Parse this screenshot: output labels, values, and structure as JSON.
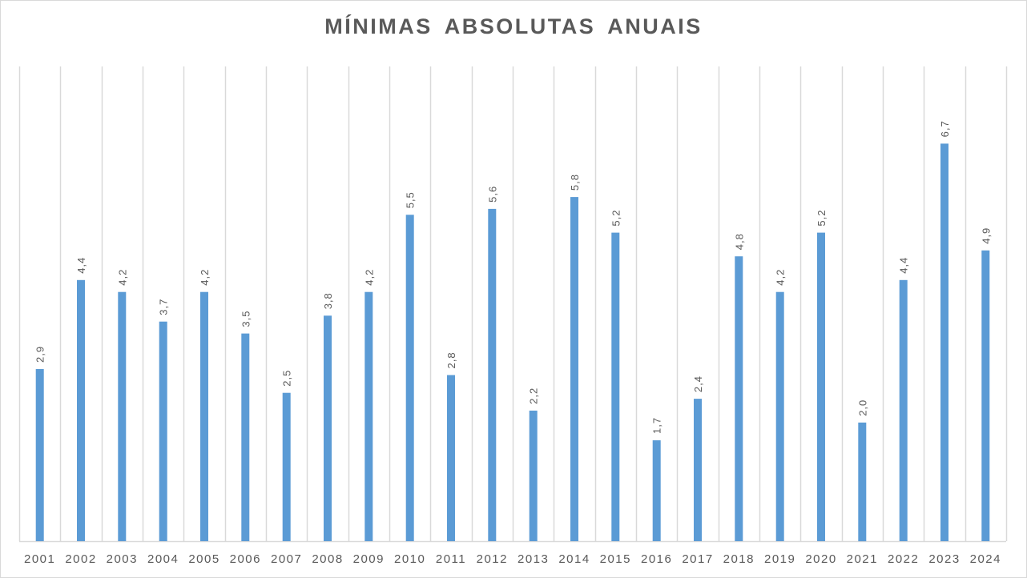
{
  "chart_data": {
    "type": "bar",
    "title": "MÍNIMAS  ABSOLUTAS  ANUAIS",
    "xlabel": "",
    "ylabel": "",
    "categories": [
      "2001",
      "2002",
      "2003",
      "2004",
      "2005",
      "2006",
      "2007",
      "2008",
      "2009",
      "2010",
      "2011",
      "2012",
      "2013",
      "2014",
      "2015",
      "2016",
      "2017",
      "2018",
      "2019",
      "2020",
      "2021",
      "2022",
      "2023",
      "2024"
    ],
    "values": [
      2.9,
      4.4,
      4.2,
      3.7,
      4.2,
      3.5,
      2.5,
      3.8,
      4.2,
      5.5,
      2.8,
      5.6,
      2.2,
      5.8,
      5.2,
      1.7,
      2.4,
      4.8,
      4.2,
      5.2,
      2.0,
      4.4,
      6.7,
      4.9
    ],
    "data_labels": [
      "2,9",
      "4,4",
      "4,2",
      "3,7",
      "4,2",
      "3,5",
      "2,5",
      "3,8",
      "4,2",
      "5,5",
      "2,8",
      "5,6",
      "2,2",
      "5,8",
      "5,2",
      "1,7",
      "2,4",
      "4,8",
      "4,2",
      "5,2",
      "2,0",
      "4,4",
      "6,7",
      "4,9"
    ],
    "ylim": [
      0,
      8
    ],
    "grid": "vertical",
    "legend": "none",
    "colors": {
      "bar": "#5b9bd5",
      "grid": "#d9d9d9",
      "text": "#595959"
    }
  }
}
